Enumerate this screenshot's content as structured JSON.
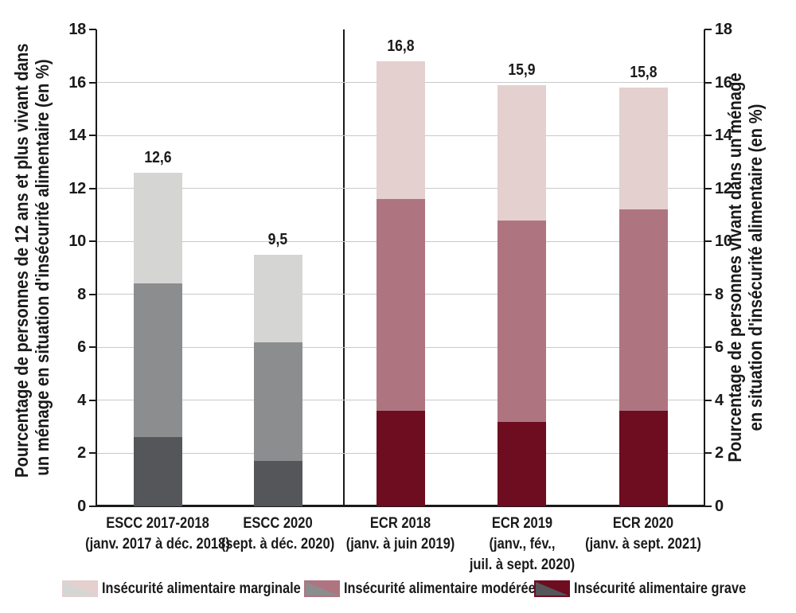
{
  "chart_data": {
    "type": "bar",
    "stacked": true,
    "ylim": [
      0,
      18
    ],
    "yticks": [
      0,
      2,
      4,
      6,
      8,
      10,
      12,
      14,
      16,
      18
    ],
    "grid": "horizontal gridlines at 2,4,6,8,10,12,14,16",
    "legend_position": "bottom",
    "left_axis_label_lines": [
      "Pourcentage de personnes de 12 ans et plus vivant dans",
      "un ménage en situation d'insécurité alimentaire (en %)"
    ],
    "right_axis_label_lines": [
      "Pourcentage de personnes vivant dans un ménage",
      "en situation d'insécurité alimentaire (en %)"
    ],
    "series": [
      {
        "key": "marginale",
        "label": "Insécurité alimentaire marginale",
        "color_escc": "#d5d6d4",
        "color_ecr": "#e3d0cf"
      },
      {
        "key": "moderee",
        "label": "Insécurité alimentaire modérée",
        "color_escc": "#8b8d8e",
        "color_ecr": "#ae7581"
      },
      {
        "key": "grave",
        "label": "Insécurité alimentaire grave",
        "color_escc": "#54565a",
        "color_ecr": "#6e0c20"
      }
    ],
    "stack_order": [
      "grave",
      "moderee",
      "marginale"
    ],
    "divider_after_category_index": 1,
    "categories": [
      {
        "id": "escc-2017-2018",
        "label_lines": [
          "ESCC 2017-2018",
          "(janv. 2017 à déc. 2018)"
        ],
        "group": "escc",
        "values": {
          "grave": 2.6,
          "moderee": 5.8,
          "marginale": 4.2
        },
        "total": 12.6,
        "total_label": "12,6"
      },
      {
        "id": "escc-2020",
        "label_lines": [
          "ESCC 2020",
          "(sept. à déc. 2020)"
        ],
        "group": "escc",
        "values": {
          "grave": 1.7,
          "moderee": 4.5,
          "marginale": 3.3
        },
        "total": 9.5,
        "total_label": "9,5"
      },
      {
        "id": "ecr-2018",
        "label_lines": [
          "ECR 2018",
          "(janv. à juin 2019)"
        ],
        "group": "ecr",
        "values": {
          "grave": 3.6,
          "moderee": 8.0,
          "marginale": 5.2
        },
        "total": 16.8,
        "total_label": "16,8"
      },
      {
        "id": "ecr-2019",
        "label_lines": [
          "ECR 2019",
          "(janv., fév.,",
          "juil. à sept. 2020)"
        ],
        "group": "ecr",
        "values": {
          "grave": 3.2,
          "moderee": 7.6,
          "marginale": 5.1
        },
        "total": 15.9,
        "total_label": "15,9"
      },
      {
        "id": "ecr-2020",
        "label_lines": [
          "ECR 2020",
          "(janv. à sept. 2021)"
        ],
        "group": "ecr",
        "values": {
          "grave": 3.6,
          "moderee": 7.6,
          "marginale": 4.6
        },
        "total": 15.8,
        "total_label": "15,8"
      }
    ]
  }
}
